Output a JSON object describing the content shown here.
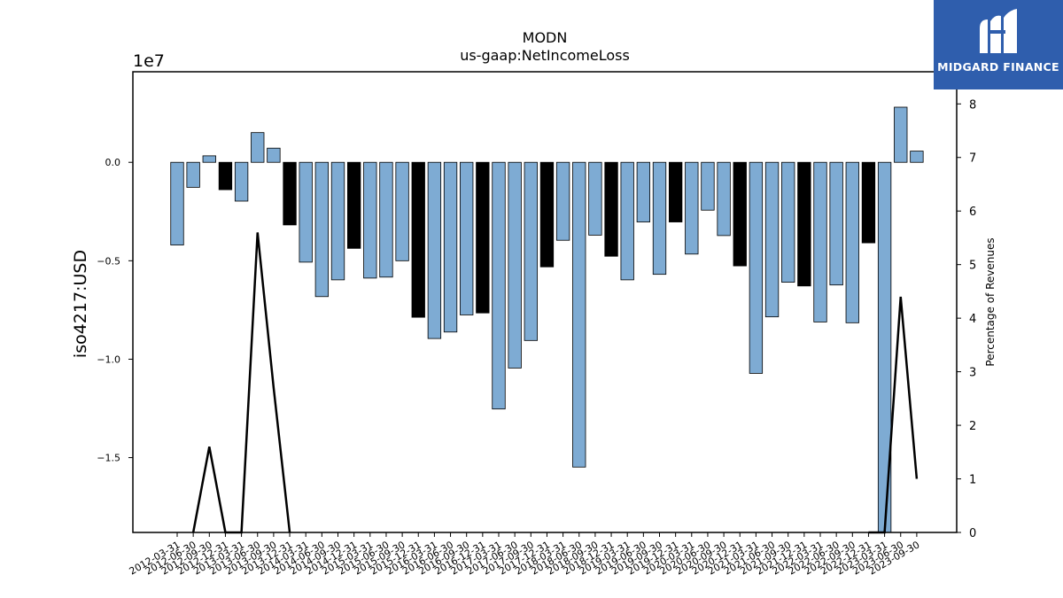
{
  "chart_data": {
    "type": "bar",
    "title": "MODN",
    "subtitle": "us-gaap:NetIncomeLoss",
    "ylabel": "iso4217:USD",
    "y_offset_label": "1e7",
    "y2label": "Percentage of Revenues",
    "ylim": [
      -1.88,
      0.46
    ],
    "y2lim": [
      0,
      8.6
    ],
    "y_ticks": [
      0.0,
      -0.5,
      -1.0,
      -1.5
    ],
    "y_tick_labels": [
      "0.0",
      "−0.5",
      "−1.0",
      "−1.5"
    ],
    "y2_ticks": [
      0,
      1,
      2,
      3,
      4,
      5,
      6,
      7,
      8
    ],
    "y2_tick_labels": [
      "0",
      "1",
      "2",
      "3",
      "4",
      "5",
      "6",
      "7",
      "8"
    ],
    "bar_color": "#7eabd3",
    "bar_highlight_color": "#000000",
    "line_color": "#000000",
    "categories": [
      "2012-03-31",
      "2012-06-30",
      "2012-09-30",
      "2012-12-31",
      "2013-03-31",
      "2013-06-30",
      "2013-09-30",
      "2013-12-31",
      "2014-03-31",
      "2014-06-30",
      "2014-09-30",
      "2014-12-31",
      "2015-03-31",
      "2015-06-30",
      "2015-09-30",
      "2015-12-31",
      "2016-03-31",
      "2016-06-30",
      "2016-09-30",
      "2016-12-31",
      "2017-03-31",
      "2017-06-30",
      "2017-09-30",
      "2017-12-31",
      "2018-03-31",
      "2018-06-30",
      "2018-09-30",
      "2018-12-31",
      "2019-03-31",
      "2019-06-30",
      "2019-09-30",
      "2019-12-31",
      "2020-03-31",
      "2020-06-30",
      "2020-09-30",
      "2020-12-31",
      "2021-03-31",
      "2021-06-30",
      "2021-09-30",
      "2021-12-31",
      "2022-03-31",
      "2022-06-30",
      "2022-09-30",
      "2022-12-31",
      "2023-03-31",
      "2023-06-30",
      "2023-09-30"
    ],
    "series": [
      {
        "values": [
          -0.42,
          -0.127,
          0.033,
          -0.139,
          -0.197,
          0.151,
          0.072,
          -0.318,
          -0.507,
          -0.682,
          -0.597,
          -0.437,
          -0.588,
          -0.583,
          -0.5,
          -0.787,
          -0.895,
          -0.862,
          -0.775,
          -0.765,
          -1.253,
          -1.045,
          -0.905,
          -0.531,
          -0.396,
          -1.548,
          -0.37,
          -0.477,
          -0.597,
          -0.303,
          -0.569,
          -0.303,
          -0.466,
          -0.243,
          -0.372,
          -0.526,
          -1.072,
          -0.785,
          -0.609,
          -0.628,
          -0.811,
          -0.623,
          -0.815,
          -0.409,
          -1.88,
          0.28,
          0.057
        ],
        "highlight": [
          false,
          false,
          false,
          true,
          false,
          false,
          false,
          true,
          false,
          false,
          false,
          true,
          false,
          false,
          false,
          true,
          false,
          false,
          false,
          true,
          false,
          false,
          false,
          true,
          false,
          false,
          false,
          true,
          false,
          false,
          false,
          true,
          false,
          false,
          false,
          true,
          false,
          false,
          false,
          true,
          false,
          false,
          false,
          true,
          false,
          false,
          false
        ]
      }
    ],
    "line_series": [
      {
        "points": [
          {
            "x": "2012-06-30",
            "y": 0.0
          },
          {
            "x": "2012-09-30",
            "y": 1.6
          },
          {
            "x": "2012-12-31",
            "y": 0.0
          },
          {
            "x": "2013-03-31",
            "y": 0.0
          },
          {
            "x": "2013-06-30",
            "y": 5.6
          },
          {
            "x": "2013-09-30",
            "y": 2.7
          },
          {
            "x": "2013-12-31",
            "y": 0.0
          },
          {
            "x": "2022-12-31",
            "y": 0.0
          },
          {
            "x": "2023-03-31",
            "y": 0.0
          },
          {
            "x": "2023-06-30",
            "y": 4.4
          },
          {
            "x": "2023-09-30",
            "y": 1.0
          }
        ]
      }
    ]
  },
  "logo": {
    "text": "MIDGARD FINANCE",
    "icon": "midgard-logo-icon",
    "background": "#2f5ead"
  }
}
